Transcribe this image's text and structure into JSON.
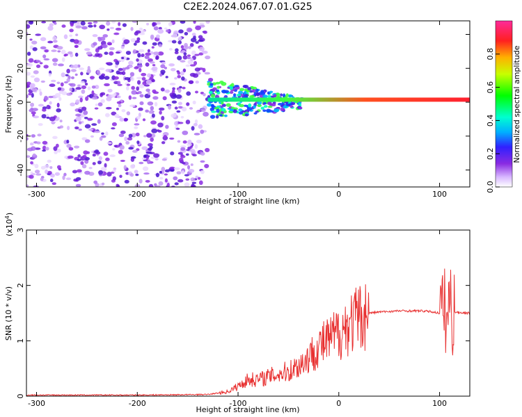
{
  "title": "C2E2.2024.067.07.01.G25",
  "chart_data": [
    {
      "type": "heatmap",
      "xlabel": "Height of straight line (km)",
      "ylabel": "Frequency (Hz)",
      "xlim": [
        -310,
        130
      ],
      "ylim": [
        -50,
        48
      ],
      "x_ticks": [
        -300,
        -200,
        -100,
        0,
        100
      ],
      "y_ticks": [
        -40,
        -20,
        0,
        20,
        40
      ],
      "colorbar": {
        "label": "Normalized spectral amplitude",
        "range": [
          0,
          1
        ],
        "ticks": [
          0.0,
          0.2,
          0.4,
          0.6,
          0.8
        ]
      },
      "features": [
        {
          "desc": "horizontal signal band",
          "x_range": [
            -130,
            130
          ],
          "frequency": 1.5
        }
      ]
    },
    {
      "type": "line",
      "xlabel": "Height of straight line (km)",
      "ylabel": "SNR (10 * v/v)",
      "y_multiplier": "(x10",
      "y_multiplier_exp": "4",
      "y_multiplier_close": ")",
      "xlim": [
        -310,
        130
      ],
      "ylim": [
        0,
        3
      ],
      "x_ticks": [
        -300,
        -200,
        -100,
        0,
        100
      ],
      "y_ticks": [
        0,
        1,
        2,
        3
      ],
      "series": [
        {
          "color": "#e83030",
          "x": [
            -310,
            -200,
            -130,
            -110,
            -100,
            -90,
            -80,
            -70,
            -60,
            -50,
            -40,
            -30,
            -20,
            -10,
            0,
            10,
            20,
            30,
            40,
            50,
            60,
            70,
            80,
            90,
            100,
            105,
            108,
            110,
            112,
            115,
            120,
            130
          ],
          "y": [
            0.02,
            0.02,
            0.03,
            0.08,
            0.18,
            0.3,
            0.3,
            0.35,
            0.4,
            0.45,
            0.55,
            0.7,
            0.9,
            1.0,
            1.15,
            1.3,
            1.42,
            1.5,
            1.52,
            1.53,
            1.54,
            1.54,
            1.54,
            1.53,
            1.5,
            1.55,
            1.4,
            1.8,
            1.5,
            1.52,
            1.51,
            1.5
          ]
        }
      ]
    }
  ]
}
